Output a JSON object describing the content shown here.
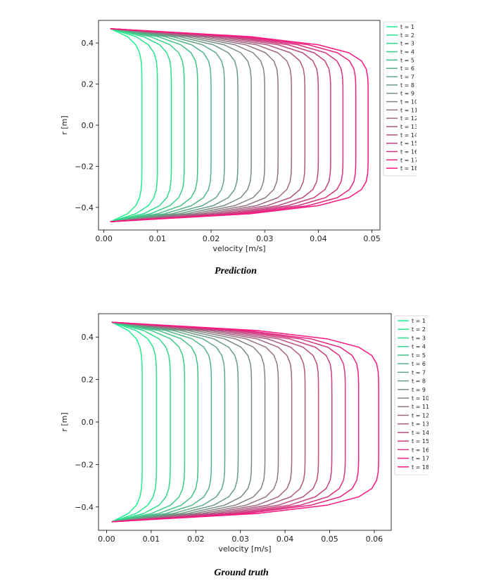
{
  "chart_data": [
    {
      "type": "line",
      "caption": "Prediction",
      "xlabel": "velocity [m/s]",
      "ylabel": "r [m]",
      "xlim": [
        -0.001,
        0.0515
      ],
      "ylim": [
        -0.51,
        0.51
      ],
      "xticks": [
        0.0,
        0.01,
        0.02,
        0.03,
        0.04,
        0.05
      ],
      "xtick_labels": [
        "0.00",
        "0.01",
        "0.02",
        "0.03",
        "0.04",
        "0.05"
      ],
      "yticks": [
        0.4,
        0.2,
        0.0,
        -0.2,
        -0.4
      ],
      "ytick_labels": [
        "0.4",
        "0.2",
        "0.0",
        "−0.2",
        "−0.4"
      ],
      "legend_position": "outside-right",
      "grid": false,
      "r_max": 0.47,
      "series": [
        {
          "name": "t = 1",
          "vmax": 0.0071,
          "color": "#1ef08c"
        },
        {
          "name": "t = 2",
          "vmax": 0.01,
          "color": "#27e58b"
        },
        {
          "name": "t = 3",
          "vmax": 0.0126,
          "color": "#30d98a"
        },
        {
          "name": "t = 4",
          "vmax": 0.015,
          "color": "#3acd89"
        },
        {
          "name": "t = 5",
          "vmax": 0.0175,
          "color": "#45c188"
        },
        {
          "name": "t = 6",
          "vmax": 0.02,
          "color": "#52b487"
        },
        {
          "name": "t = 7",
          "vmax": 0.0225,
          "color": "#5fa786"
        },
        {
          "name": "t = 8",
          "vmax": 0.025,
          "color": "#6c9a85"
        },
        {
          "name": "t = 9",
          "vmax": 0.0275,
          "color": "#7a8d84"
        },
        {
          "name": "t = 10",
          "vmax": 0.03,
          "color": "#878083"
        },
        {
          "name": "t = 11",
          "vmax": 0.0325,
          "color": "#947382"
        },
        {
          "name": "t = 12",
          "vmax": 0.035,
          "color": "#a16681"
        },
        {
          "name": "t = 13",
          "vmax": 0.0375,
          "color": "#ae5980"
        },
        {
          "name": "t = 14",
          "vmax": 0.04,
          "color": "#bb4c7f"
        },
        {
          "name": "t = 15",
          "vmax": 0.0423,
          "color": "#c8407f"
        },
        {
          "name": "t = 16",
          "vmax": 0.0446,
          "color": "#d6337f"
        },
        {
          "name": "t = 17",
          "vmax": 0.047,
          "color": "#e8227f"
        },
        {
          "name": "t = 18",
          "vmax": 0.0493,
          "color": "#ff1480"
        }
      ]
    },
    {
      "type": "line",
      "caption": "Ground truth",
      "xlabel": "velocity [m/s]",
      "ylabel": "r [m]",
      "xlim": [
        -0.0018,
        0.0638
      ],
      "ylim": [
        -0.51,
        0.51
      ],
      "xticks": [
        0.0,
        0.01,
        0.02,
        0.03,
        0.04,
        0.05,
        0.06
      ],
      "xtick_labels": [
        "0.00",
        "0.01",
        "0.02",
        "0.03",
        "0.04",
        "0.05",
        "0.06"
      ],
      "yticks": [
        0.4,
        0.2,
        0.0,
        -0.2,
        -0.4
      ],
      "ytick_labels": [
        "0.4",
        "0.2",
        "0.0",
        "−0.2",
        "−0.4"
      ],
      "legend_position": "outside-right",
      "grid": false,
      "r_max": 0.47,
      "series": [
        {
          "name": "t = 1",
          "vmax": 0.008,
          "color": "#1ef08c"
        },
        {
          "name": "t = 2",
          "vmax": 0.0112,
          "color": "#27e58b"
        },
        {
          "name": "t = 3",
          "vmax": 0.0143,
          "color": "#30d98a"
        },
        {
          "name": "t = 4",
          "vmax": 0.0175,
          "color": "#3acd89"
        },
        {
          "name": "t = 5",
          "vmax": 0.0205,
          "color": "#45c188"
        },
        {
          "name": "t = 6",
          "vmax": 0.0235,
          "color": "#52b487"
        },
        {
          "name": "t = 7",
          "vmax": 0.0265,
          "color": "#5fa786"
        },
        {
          "name": "t = 8",
          "vmax": 0.0295,
          "color": "#6c9a85"
        },
        {
          "name": "t = 9",
          "vmax": 0.0325,
          "color": "#7a8d84"
        },
        {
          "name": "t = 10",
          "vmax": 0.0355,
          "color": "#878083"
        },
        {
          "name": "t = 11",
          "vmax": 0.0385,
          "color": "#947382"
        },
        {
          "name": "t = 12",
          "vmax": 0.0415,
          "color": "#a16681"
        },
        {
          "name": "t = 13",
          "vmax": 0.0445,
          "color": "#ae5980"
        },
        {
          "name": "t = 14",
          "vmax": 0.0475,
          "color": "#bb4c7f"
        },
        {
          "name": "t = 15",
          "vmax": 0.0505,
          "color": "#c8407f"
        },
        {
          "name": "t = 16",
          "vmax": 0.0535,
          "color": "#d6337f"
        },
        {
          "name": "t = 17",
          "vmax": 0.0565,
          "color": "#e8227f"
        },
        {
          "name": "t = 18",
          "vmax": 0.061,
          "color": "#ff1480"
        }
      ]
    }
  ]
}
